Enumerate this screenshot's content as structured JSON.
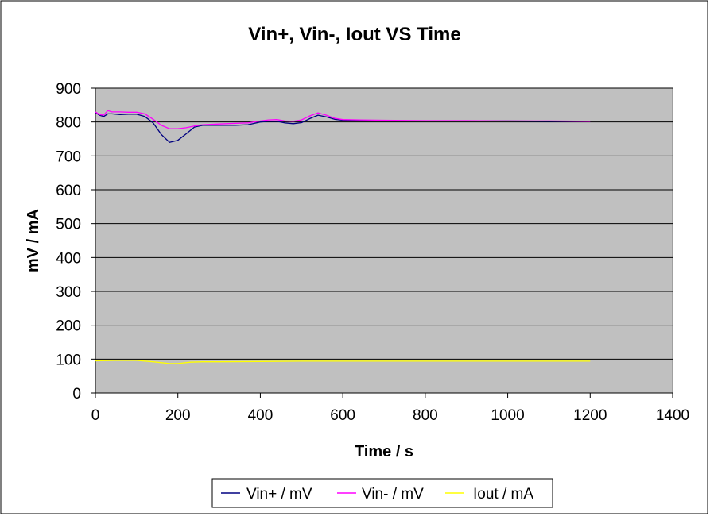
{
  "chart_data": {
    "type": "line",
    "title": "Vin+, Vin-, Iout VS Time",
    "xlabel": "Time / s",
    "ylabel": "mV / mA",
    "xlim": [
      0,
      1400
    ],
    "ylim": [
      0,
      900
    ],
    "xticks": [
      0,
      200,
      400,
      600,
      800,
      1000,
      1200,
      1400
    ],
    "yticks": [
      0,
      100,
      200,
      300,
      400,
      500,
      600,
      700,
      800,
      900
    ],
    "grid": "horizontal",
    "plot_background": "#c0c0c0",
    "legend_position": "bottom",
    "series": [
      {
        "name": "Vin+ / mV",
        "color": "#000080",
        "x": [
          0,
          10,
          20,
          30,
          40,
          60,
          80,
          100,
          120,
          140,
          160,
          180,
          200,
          220,
          240,
          260,
          300,
          340,
          370,
          400,
          420,
          440,
          460,
          480,
          500,
          520,
          540,
          560,
          580,
          600,
          640,
          700,
          800,
          900,
          1000,
          1100,
          1200
        ],
        "y": [
          828,
          820,
          816,
          824,
          824,
          822,
          823,
          823,
          816,
          797,
          763,
          740,
          746,
          765,
          785,
          790,
          790,
          790,
          792,
          800,
          802,
          802,
          797,
          795,
          798,
          810,
          820,
          815,
          808,
          805,
          804,
          803,
          803,
          803,
          803,
          802,
          802
        ]
      },
      {
        "name": "Vin- / mV",
        "color": "#ff00ff",
        "x": [
          0,
          10,
          20,
          30,
          40,
          60,
          80,
          100,
          120,
          140,
          160,
          180,
          200,
          220,
          240,
          260,
          300,
          340,
          370,
          400,
          420,
          440,
          460,
          480,
          500,
          520,
          540,
          560,
          580,
          600,
          640,
          700,
          800,
          900,
          1000,
          1100,
          1200
        ],
        "y": [
          830,
          822,
          820,
          834,
          830,
          830,
          829,
          829,
          824,
          808,
          790,
          780,
          780,
          783,
          788,
          792,
          794,
          796,
          797,
          803,
          806,
          807,
          803,
          802,
          806,
          818,
          827,
          820,
          811,
          807,
          806,
          805,
          804,
          804,
          803,
          803,
          802
        ]
      },
      {
        "name": "Iout / mA",
        "color": "#ffff00",
        "x": [
          0,
          50,
          100,
          140,
          180,
          200,
          230,
          260,
          300,
          400,
          500,
          600,
          800,
          1000,
          1200
        ],
        "y": [
          95,
          96,
          96,
          92,
          87,
          87,
          91,
          92,
          92,
          93,
          94,
          94,
          94,
          94,
          94
        ]
      }
    ]
  }
}
